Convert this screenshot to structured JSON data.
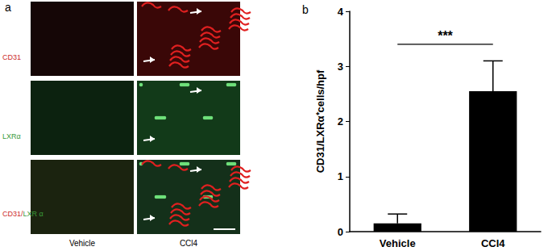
{
  "panel_labels": [
    "a",
    "b"
  ],
  "image_panel": {
    "row_labels": [
      [
        "CD31"
      ],
      [
        "LXRα"
      ],
      [
        "CD31/",
        "LXR α"
      ]
    ],
    "column_labels": [
      "Vehicle",
      "CCl4"
    ]
  },
  "chart_data": {
    "type": "bar",
    "categories": [
      "Vehicle",
      "CCl4"
    ],
    "values": [
      0.15,
      2.55
    ],
    "errors": [
      0.17,
      0.55
    ],
    "color": "#000000",
    "y_label": "CD31/LXRα⁺cells/hpf",
    "ylim": [
      0,
      4
    ],
    "yticks": [
      0,
      1,
      2,
      3,
      4
    ],
    "grid": false,
    "annotations": [
      {
        "text": "***",
        "from": "Vehicle",
        "to": "CCl4",
        "y": 3.4
      }
    ]
  }
}
